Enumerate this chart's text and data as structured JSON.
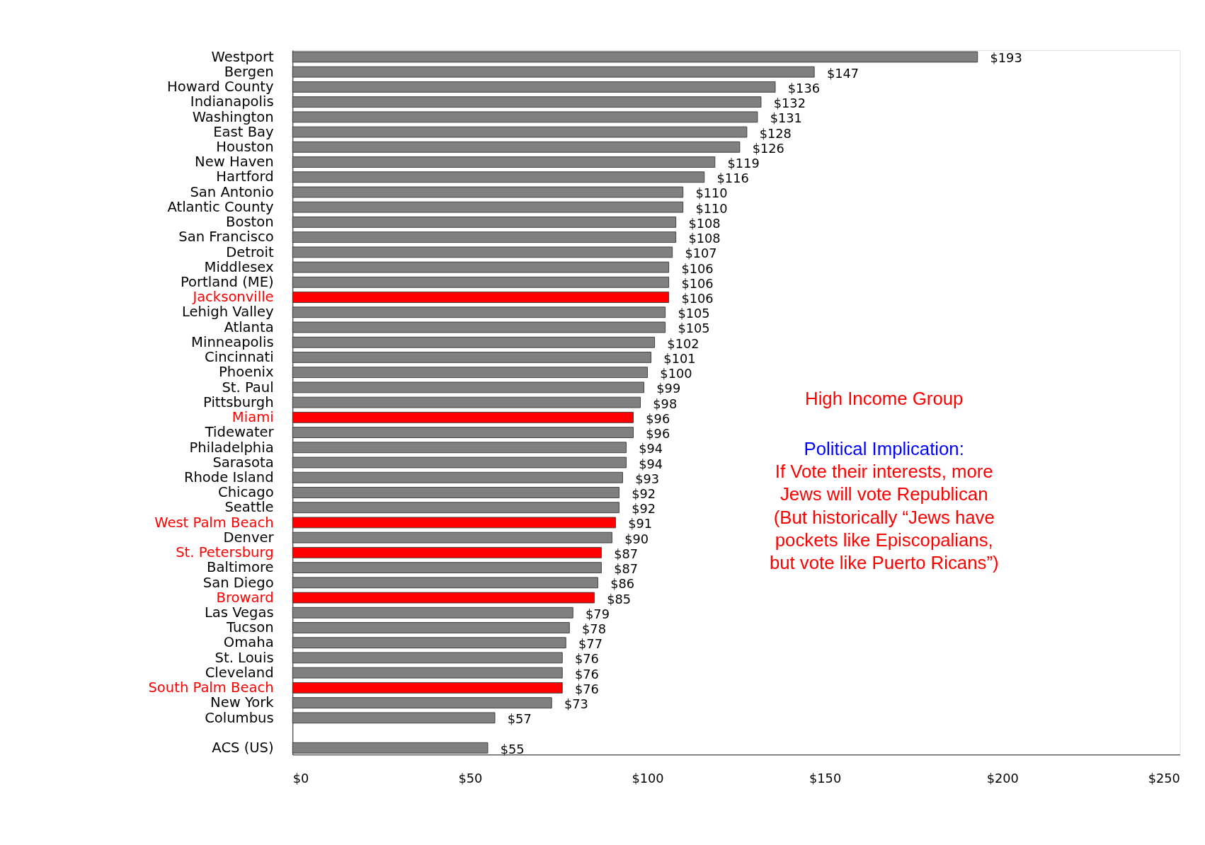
{
  "chart_data": {
    "type": "bar",
    "orientation": "horizontal",
    "categories": [
      "Westport",
      "Bergen",
      "Howard County",
      "Indianapolis",
      "Washington",
      "East Bay",
      "Houston",
      "New Haven",
      "Hartford",
      "San Antonio",
      "Atlantic County",
      "Boston",
      "San Francisco",
      "Detroit",
      "Middlesex",
      "Portland (ME)",
      "Jacksonville",
      "Lehigh Valley",
      "Atlanta",
      "Minneapolis",
      "Cincinnati",
      "Phoenix",
      "St. Paul",
      "Pittsburgh",
      "Miami",
      "Tidewater",
      "Philadelphia",
      "Sarasota",
      "Rhode Island",
      "Chicago",
      "Seattle",
      "West Palm Beach",
      "Denver",
      "St. Petersburg",
      "Baltimore",
      "San Diego",
      "Broward",
      "Las Vegas",
      "Tucson",
      "Omaha",
      "St. Louis",
      "Cleveland",
      "South Palm Beach",
      "New York",
      "Columbus",
      null,
      "ACS (US)"
    ],
    "values": [
      193,
      147,
      136,
      132,
      131,
      128,
      126,
      119,
      116,
      110,
      110,
      108,
      108,
      107,
      106,
      106,
      106,
      105,
      105,
      102,
      101,
      100,
      99,
      98,
      96,
      96,
      94,
      94,
      93,
      92,
      92,
      91,
      90,
      87,
      87,
      86,
      85,
      79,
      78,
      77,
      76,
      76,
      76,
      73,
      57,
      null,
      55
    ],
    "value_labels": [
      "$193",
      "$147",
      "$136",
      "$132",
      "$131",
      "$128",
      "$126",
      "$119",
      "$116",
      "$110",
      "$110",
      "$108",
      "$108",
      "$107",
      "$106",
      "$106",
      "$106",
      "$105",
      "$105",
      "$102",
      "$101",
      "$100",
      "$99",
      "$98",
      "$96",
      "$96",
      "$94",
      "$94",
      "$93",
      "$92",
      "$92",
      "$91",
      "$90",
      "$87",
      "$87",
      "$86",
      "$85",
      "$79",
      "$78",
      "$77",
      "$76",
      "$76",
      "$76",
      "$73",
      "$57",
      null,
      "$55"
    ],
    "colors": [
      "#808080",
      "#808080",
      "#808080",
      "#808080",
      "#808080",
      "#808080",
      "#808080",
      "#808080",
      "#808080",
      "#808080",
      "#808080",
      "#808080",
      "#808080",
      "#808080",
      "#808080",
      "#808080",
      "#ff0000",
      "#808080",
      "#808080",
      "#808080",
      "#808080",
      "#808080",
      "#808080",
      "#808080",
      "#ff0000",
      "#808080",
      "#808080",
      "#808080",
      "#808080",
      "#808080",
      "#808080",
      "#ff0000",
      "#808080",
      "#ff0000",
      "#808080",
      "#808080",
      "#ff0000",
      "#808080",
      "#808080",
      "#808080",
      "#808080",
      "#808080",
      "#ff0000",
      "#808080",
      "#808080",
      null,
      "#808080"
    ],
    "xlim": [
      0,
      250
    ],
    "xticks": [
      {
        "value": 0,
        "label": "$0"
      },
      {
        "value": 50,
        "label": "$50"
      },
      {
        "value": 100,
        "label": "$100"
      },
      {
        "value": 150,
        "label": "$150"
      },
      {
        "value": 200,
        "label": "$200"
      },
      {
        "value": 250,
        "label": "$250"
      }
    ],
    "grid": false,
    "annotations": [
      "High Income Group",
      "Political Implication:",
      "If Vote their interests, more",
      "Jews will vote Republican",
      "(But historically “Jews have",
      "pockets like Episcopalians,",
      "but vote like Puerto Ricans”)"
    ]
  }
}
